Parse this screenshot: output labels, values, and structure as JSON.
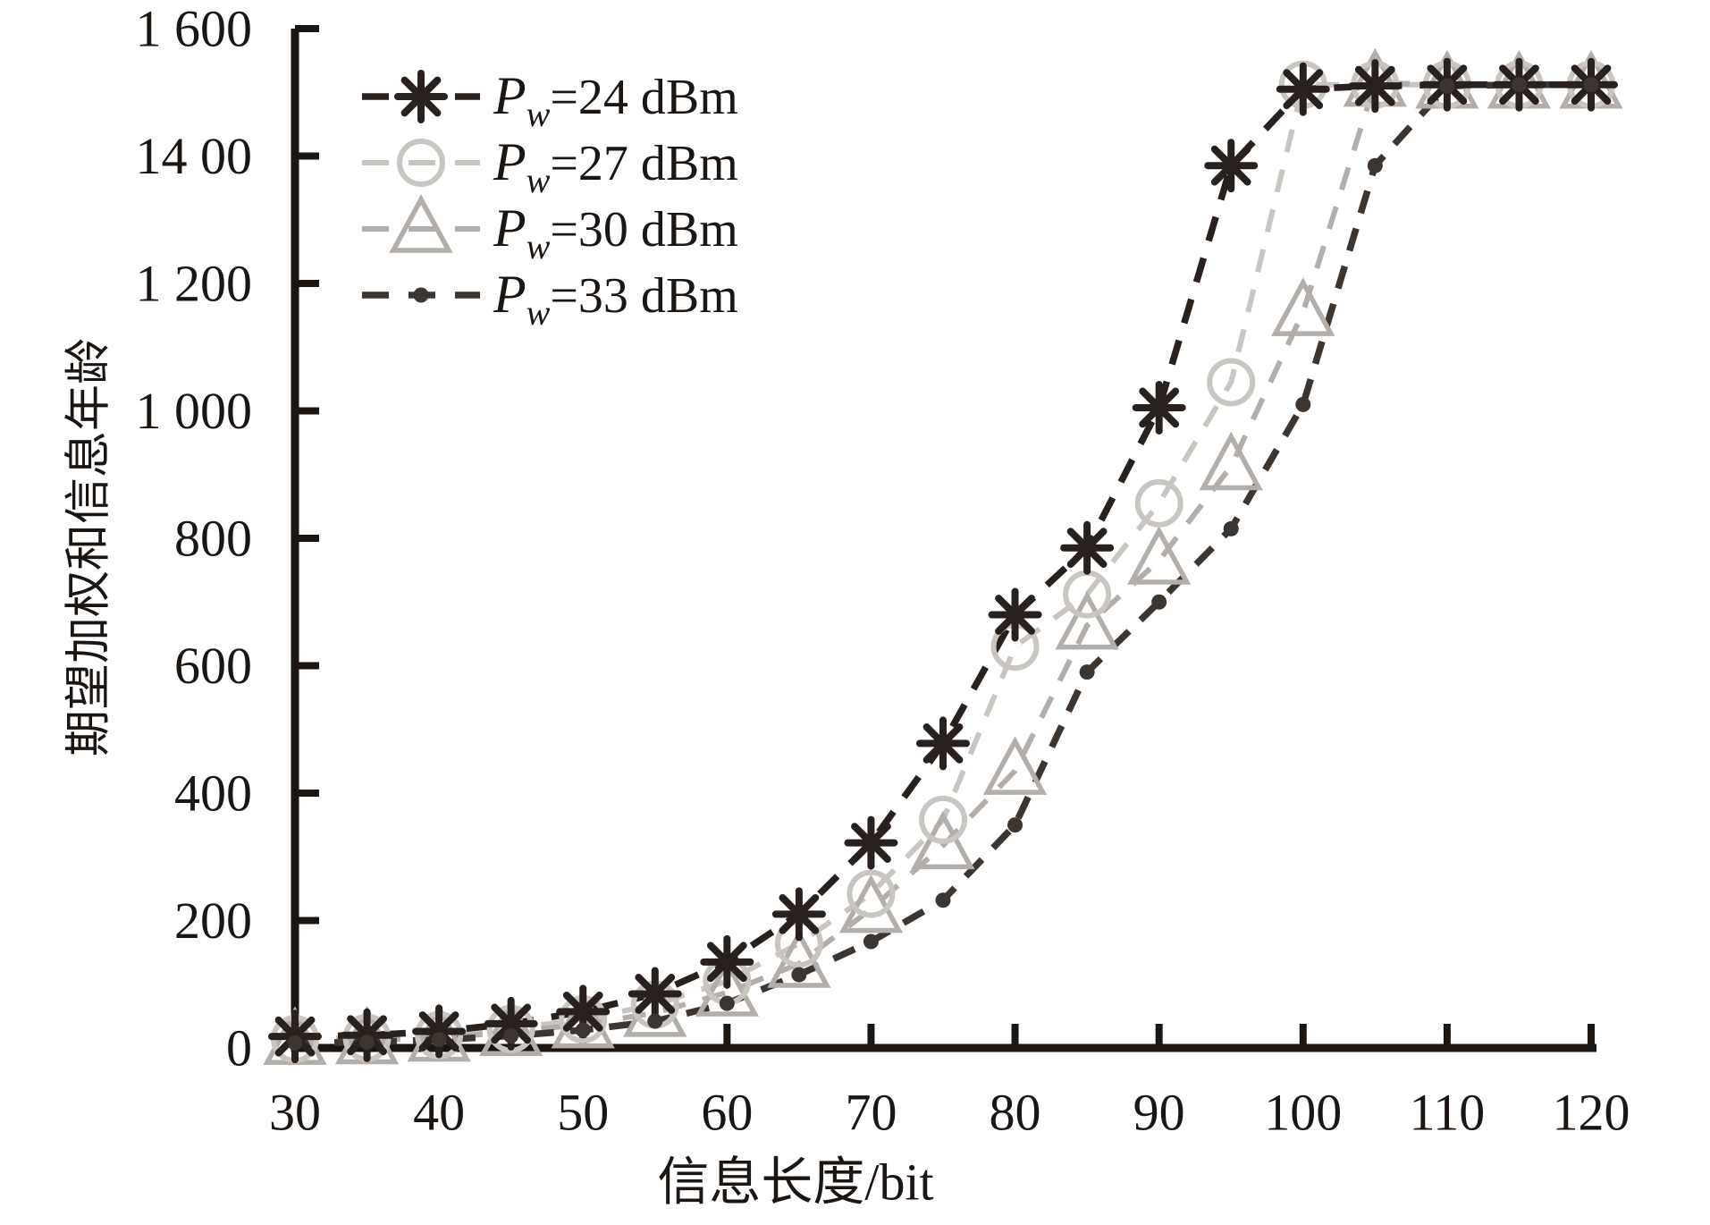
{
  "figure": {
    "background": "#ffffff",
    "axis_color": "#1c1613"
  },
  "chart_data": {
    "type": "line",
    "title": "",
    "xlabel": "信息长度/bit",
    "ylabel": "期望加权和信息年龄",
    "xlim": [
      30,
      120
    ],
    "ylim": [
      0,
      1600
    ],
    "grid": false,
    "legend_position": "upper-left",
    "x_tick_values": [
      30,
      40,
      50,
      60,
      70,
      80,
      90,
      100,
      110,
      120
    ],
    "x_tick_labels": [
      "30",
      "40",
      "50",
      "60",
      "70",
      "80",
      "90",
      "100",
      "110",
      "120"
    ],
    "y_tick_values": [
      0,
      200,
      400,
      600,
      800,
      1000,
      1200,
      1400,
      1600
    ],
    "y_tick_labels": [
      "0",
      "200",
      "400",
      "600",
      "800",
      "1 000",
      "1 200",
      "14 00",
      "1 600"
    ],
    "x": [
      30,
      35,
      40,
      45,
      50,
      55,
      60,
      65,
      70,
      75,
      80,
      85,
      90,
      95,
      100,
      105,
      110,
      115,
      120
    ],
    "series": [
      {
        "name": "Pw=24 dBm",
        "label": {
          "base": "P",
          "sub": "w",
          "rest": "=24 dBm"
        },
        "marker": "asterisk",
        "color": "#29211e",
        "line_width": 7.5,
        "dash": "28 20",
        "values": [
          18,
          20,
          26,
          38,
          57,
          85,
          135,
          210,
          322,
          478,
          680,
          785,
          1005,
          1385,
          1505,
          1510,
          1512,
          1512,
          1512
        ]
      },
      {
        "name": "Pw=27 dBm",
        "label": {
          "base": "P",
          "sub": "w",
          "rest": "=27 dBm"
        },
        "marker": "circle",
        "color": "#c9c5c0",
        "line_width": 6,
        "dash": "26 20",
        "values": [
          14,
          16,
          20,
          30,
          45,
          68,
          105,
          164,
          242,
          358,
          630,
          712,
          855,
          1045,
          1512,
          1512,
          1512,
          1512,
          1512
        ]
      },
      {
        "name": "Pw=30 dBm",
        "label": {
          "base": "P",
          "sub": "w",
          "rest": "=30 dBm"
        },
        "marker": "triangle",
        "color": "#b3aea9",
        "line_width": 6,
        "dash": "26 20",
        "values": [
          11,
          12,
          16,
          25,
          37,
          55,
          87,
          132,
          218,
          318,
          435,
          663,
          765,
          913,
          1155,
          1515,
          1512,
          1512,
          1512
        ]
      },
      {
        "name": "Pw=33 dBm",
        "label": {
          "base": "P",
          "sub": "w",
          "rest": "=33 dBm"
        },
        "marker": "dot",
        "color": "#3d3630",
        "line_width": 7.5,
        "dash": "26 18",
        "values": [
          8,
          9,
          13,
          19,
          28,
          42,
          70,
          115,
          167,
          232,
          350,
          590,
          700,
          815,
          1010,
          1385,
          1510,
          1512,
          1512
        ]
      }
    ]
  }
}
